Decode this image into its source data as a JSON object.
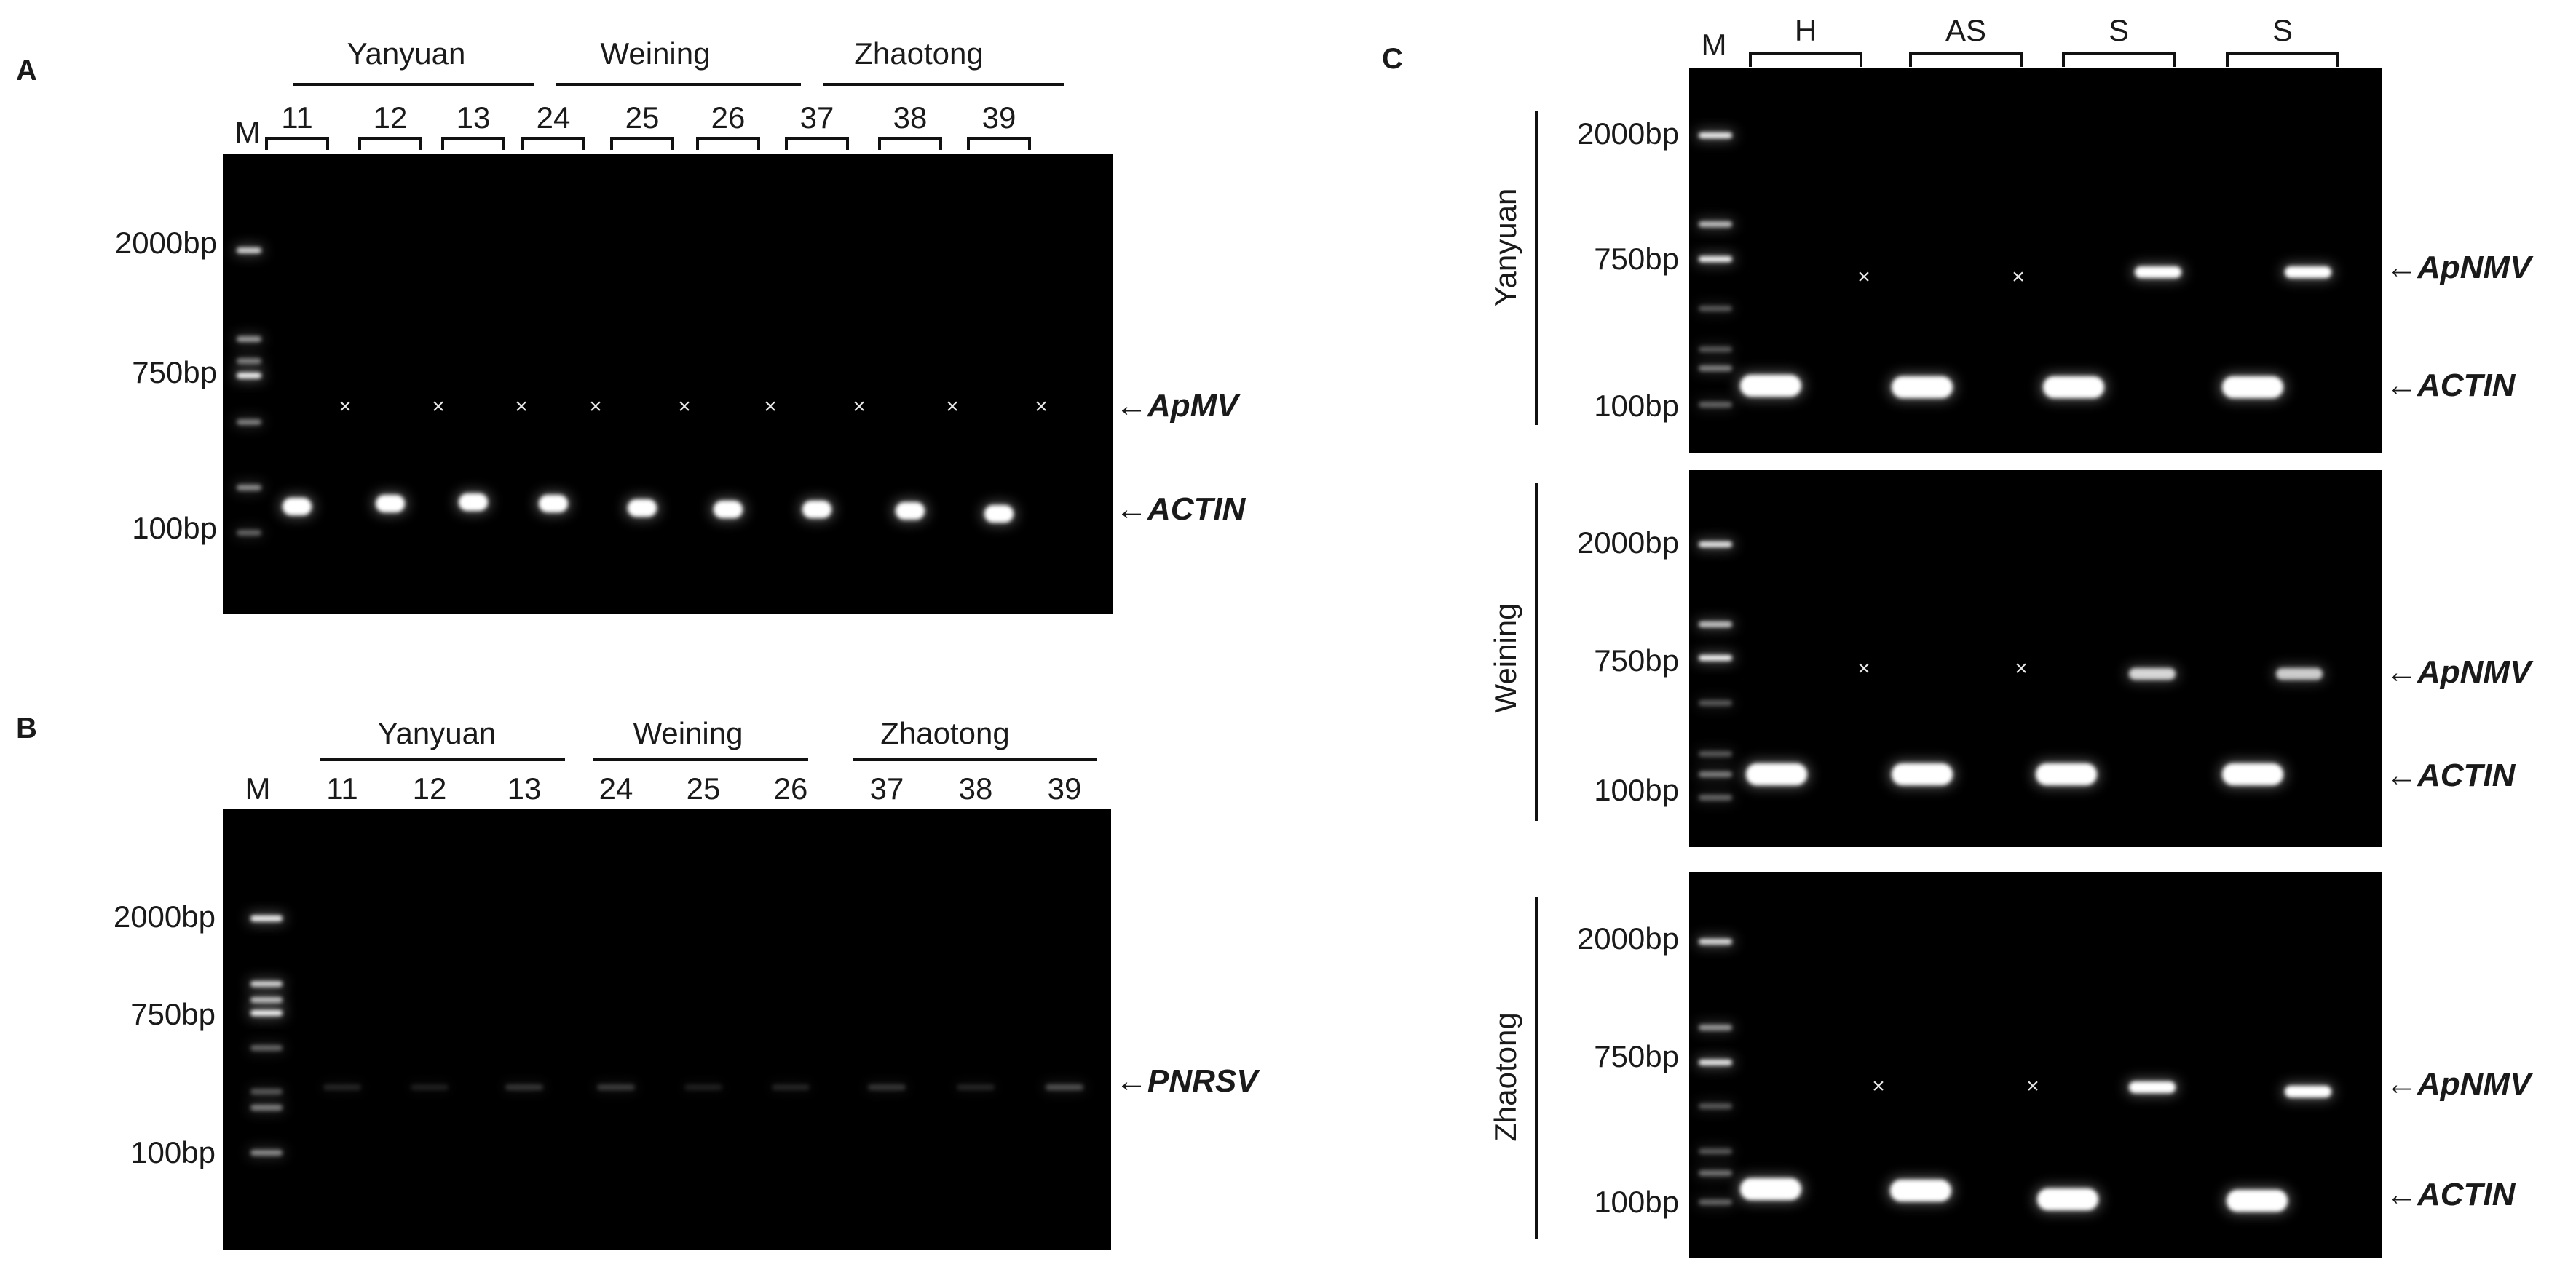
{
  "panels": [
    {
      "id": "A",
      "label": "A",
      "groups": [
        "Yanyuan",
        "Weining",
        "Zhaotong"
      ],
      "ladder_label": "M",
      "lanes": [
        "11",
        "12",
        "13",
        "24",
        "25",
        "26",
        "37",
        "38",
        "39"
      ],
      "markers": [
        "2000bp",
        "750bp",
        "100bp"
      ],
      "targets": [
        "←ApMV",
        "←ACTIN"
      ],
      "absent_mark": "×"
    },
    {
      "id": "B",
      "label": "B",
      "groups": [
        "Yanyuan",
        "Weining",
        "Zhaotong"
      ],
      "ladder_label": "M",
      "lanes": [
        "11",
        "12",
        "13",
        "24",
        "25",
        "26",
        "37",
        "38",
        "39"
      ],
      "markers": [
        "2000bp",
        "750bp",
        "100bp"
      ],
      "targets": [
        "←PNRSV"
      ]
    },
    {
      "id": "C",
      "label": "C",
      "ladder_label": "M",
      "sample_groups": [
        "H",
        "AS",
        "S",
        "S"
      ],
      "absent_mark": "×",
      "gels": [
        {
          "row_label": "Yanyuan",
          "markers": [
            "2000bp",
            "750bp",
            "100bp"
          ],
          "targets": [
            "←ApNMV",
            "←ACTIN"
          ]
        },
        {
          "row_label": "Weining",
          "markers": [
            "2000bp",
            "750bp",
            "100bp"
          ],
          "targets": [
            "←ApNMV",
            "←ACTIN"
          ]
        },
        {
          "row_label": "Zhaotong",
          "markers": [
            "2000bp",
            "750bp",
            "100bp"
          ],
          "targets": [
            "←ApNMV",
            "←ACTIN"
          ]
        }
      ]
    }
  ],
  "colors": {
    "background": "#ffffff",
    "gel": "#000000",
    "band": "#ffffff",
    "text": "#1a1a1a"
  }
}
